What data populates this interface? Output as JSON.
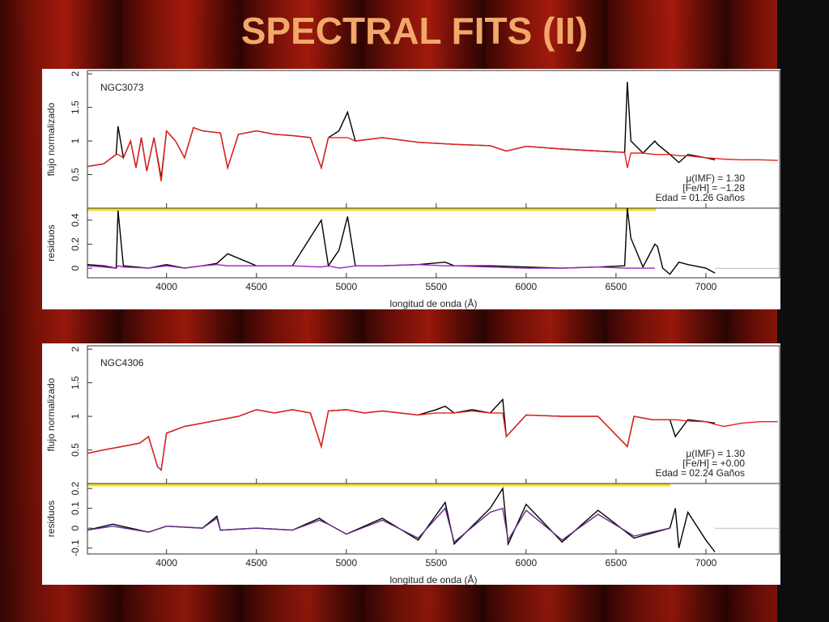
{
  "slide_title": "SPECTRAL FITS (II)",
  "chart_data": [
    {
      "type": "line",
      "title": "NGC3073",
      "ylabel": "flujo normalizado",
      "xlim": [
        3560,
        7410
      ],
      "ylim": [
        0,
        2.05
      ],
      "yticks": [
        0.5,
        1,
        1.5,
        2
      ],
      "annotations": [
        "μ(IMF) =    1.30",
        "[Fe/H] =  −1.28",
        "Edad =  01.26 Gaños"
      ],
      "x": [
        3560,
        3650,
        3720,
        3730,
        3760,
        3800,
        3830,
        3860,
        3890,
        3930,
        3970,
        4000,
        4050,
        4100,
        4150,
        4200,
        4300,
        4340,
        4400,
        4500,
        4600,
        4700,
        4800,
        4861,
        4900,
        4959,
        5007,
        5050,
        5200,
        5400,
        5600,
        5800,
        5890,
        6000,
        6200,
        6400,
        6548,
        6563,
        6583,
        6650,
        6716,
        6731,
        6800,
        6850,
        6900,
        7000,
        7050,
        7100,
        7200,
        7300,
        7400
      ],
      "series": [
        {
          "color": "#000000",
          "values": [
            0.62,
            0.66,
            0.8,
            1.22,
            0.75,
            1.0,
            0.6,
            1.05,
            0.55,
            1.05,
            0.45,
            1.15,
            1.0,
            0.75,
            1.2,
            1.15,
            1.12,
            0.6,
            1.1,
            1.15,
            1.1,
            1.08,
            1.05,
            0.6,
            1.05,
            1.15,
            1.43,
            1.0,
            1.05,
            0.98,
            0.95,
            0.93,
            0.85,
            0.92,
            0.88,
            0.85,
            0.83,
            1.88,
            1.0,
            0.82,
            1.0,
            0.95,
            0.8,
            0.68,
            0.8,
            0.75,
            0.72,
            null,
            null,
            null,
            null
          ]
        },
        {
          "color": "#e8201c",
          "values": [
            0.62,
            0.66,
            0.8,
            0.8,
            0.75,
            1.0,
            0.6,
            1.05,
            0.55,
            1.05,
            0.4,
            1.15,
            1.0,
            0.75,
            1.2,
            1.15,
            1.12,
            0.6,
            1.1,
            1.15,
            1.1,
            1.08,
            1.05,
            0.6,
            1.05,
            1.05,
            1.05,
            1.0,
            1.05,
            0.98,
            0.95,
            0.93,
            0.85,
            0.92,
            0.88,
            0.85,
            0.83,
            0.6,
            0.82,
            0.82,
            0.8,
            0.8,
            0.8,
            0.78,
            0.78,
            0.75,
            0.74,
            0.73,
            0.72,
            0.72,
            0.71
          ]
        }
      ]
    },
    {
      "type": "line",
      "ylabel": "residuos",
      "xlabel": "longitud de onda (Å)",
      "xlim": [
        3560,
        7410
      ],
      "ylim": [
        -0.08,
        0.5
      ],
      "yticks": [
        0,
        0.2,
        0.4
      ],
      "xticks": [
        4000,
        4500,
        5000,
        5500,
        6000,
        6500,
        7000
      ],
      "x": [
        3560,
        3650,
        3720,
        3730,
        3760,
        3900,
        4000,
        4100,
        4200,
        4280,
        4340,
        4500,
        4700,
        4861,
        4900,
        4959,
        5007,
        5050,
        5200,
        5400,
        5550,
        5600,
        5800,
        6000,
        6200,
        6400,
        6548,
        6563,
        6583,
        6650,
        6716,
        6731,
        6760,
        6800,
        6850,
        6900,
        7000,
        7050
      ],
      "series": [
        {
          "color": "#000000",
          "values": [
            0.03,
            0.02,
            0.0,
            0.48,
            0.02,
            0.0,
            0.03,
            0.0,
            0.02,
            0.04,
            0.12,
            0.02,
            0.02,
            0.4,
            0.02,
            0.15,
            0.43,
            0.02,
            0.02,
            0.03,
            0.05,
            0.02,
            0.02,
            0.01,
            0.0,
            0.01,
            0.02,
            0.5,
            0.25,
            0.01,
            0.2,
            0.18,
            0.0,
            -0.05,
            0.05,
            0.03,
            0.0,
            -0.04
          ]
        },
        {
          "color": "#a020c0",
          "values": [
            0.02,
            0.01,
            0.0,
            0.02,
            0.01,
            0.0,
            0.02,
            0.0,
            0.02,
            0.03,
            0.02,
            0.02,
            0.02,
            0.01,
            0.02,
            0.0,
            0.01,
            0.02,
            0.02,
            0.03,
            0.02,
            0.02,
            0.01,
            0.0,
            0.0,
            0.01,
            0.0,
            0.0,
            0.0,
            0.0,
            0.0,
            null,
            null,
            null,
            null,
            null,
            null,
            null
          ]
        }
      ]
    },
    {
      "type": "line",
      "title": "NGC4306",
      "ylabel": "flujo normalizado",
      "xlim": [
        3560,
        7410
      ],
      "ylim": [
        0,
        2.05
      ],
      "yticks": [
        0.5,
        1,
        1.5,
        2
      ],
      "annotations": [
        "μ(IMF) =    1.30",
        "[Fe/H] =  +0.00",
        "Edad =  02.24 Gaños"
      ],
      "x": [
        3560,
        3650,
        3750,
        3850,
        3900,
        3950,
        3970,
        4000,
        4050,
        4100,
        4200,
        4300,
        4400,
        4500,
        4600,
        4700,
        4800,
        4861,
        4900,
        5000,
        5100,
        5200,
        5300,
        5400,
        5500,
        5550,
        5600,
        5700,
        5800,
        5870,
        5890,
        6000,
        6200,
        6400,
        6563,
        6600,
        6700,
        6800,
        6830,
        6900,
        7000,
        7050,
        7100,
        7200,
        7300,
        7400
      ],
      "series": [
        {
          "color": "#000000",
          "values": [
            0.45,
            0.5,
            0.55,
            0.6,
            0.7,
            0.25,
            0.2,
            0.75,
            0.8,
            0.85,
            0.9,
            0.95,
            1.0,
            1.1,
            1.05,
            1.1,
            1.05,
            0.55,
            1.08,
            1.1,
            1.05,
            1.08,
            1.05,
            1.02,
            1.1,
            1.15,
            1.05,
            1.1,
            1.05,
            1.25,
            0.7,
            1.02,
            1.0,
            1.0,
            0.55,
            1.0,
            0.95,
            0.95,
            0.7,
            0.95,
            0.92,
            0.9,
            null,
            null,
            null,
            null
          ]
        },
        {
          "color": "#e8201c",
          "values": [
            0.45,
            0.5,
            0.55,
            0.6,
            0.7,
            0.25,
            0.2,
            0.75,
            0.8,
            0.85,
            0.9,
            0.95,
            1.0,
            1.1,
            1.05,
            1.1,
            1.05,
            0.55,
            1.08,
            1.1,
            1.05,
            1.08,
            1.05,
            1.02,
            1.05,
            1.05,
            1.05,
            1.08,
            1.05,
            1.05,
            0.7,
            1.02,
            1.0,
            1.0,
            0.55,
            1.0,
            0.95,
            0.95,
            0.95,
            0.93,
            0.92,
            0.88,
            0.85,
            0.9,
            0.92,
            0.92
          ]
        }
      ]
    },
    {
      "type": "line",
      "ylabel": "residuos",
      "xlabel": "longitud de onda (Å)",
      "xlim": [
        3560,
        7410
      ],
      "ylim": [
        -0.13,
        0.225
      ],
      "yticks": [
        -0.1,
        0,
        0.1,
        0.2
      ],
      "xticks": [
        4000,
        4500,
        5000,
        5500,
        6000,
        6500,
        7000
      ],
      "x": [
        3560,
        3700,
        3900,
        4000,
        4200,
        4280,
        4300,
        4500,
        4700,
        4850,
        4900,
        5000,
        5200,
        5400,
        5550,
        5600,
        5800,
        5870,
        5900,
        6000,
        6200,
        6400,
        6600,
        6800,
        6830,
        6850,
        6900,
        7000,
        7050
      ],
      "series": [
        {
          "color": "#000000",
          "values": [
            -0.01,
            0.02,
            -0.02,
            0.01,
            0.0,
            0.06,
            -0.01,
            0.0,
            -0.01,
            0.05,
            0.02,
            -0.03,
            0.05,
            -0.06,
            0.13,
            -0.08,
            0.1,
            0.2,
            -0.08,
            0.12,
            -0.07,
            0.09,
            -0.05,
            0.0,
            0.1,
            -0.1,
            0.08,
            -0.06,
            -0.12
          ]
        },
        {
          "color": "#6a2a8a",
          "values": [
            -0.01,
            0.01,
            -0.02,
            0.01,
            0.0,
            0.05,
            -0.01,
            0.0,
            -0.01,
            0.04,
            0.02,
            -0.03,
            0.04,
            -0.05,
            0.1,
            -0.07,
            0.08,
            0.1,
            -0.06,
            0.09,
            -0.06,
            0.07,
            -0.04,
            0.0,
            null,
            null,
            null,
            null,
            null
          ]
        }
      ]
    }
  ]
}
